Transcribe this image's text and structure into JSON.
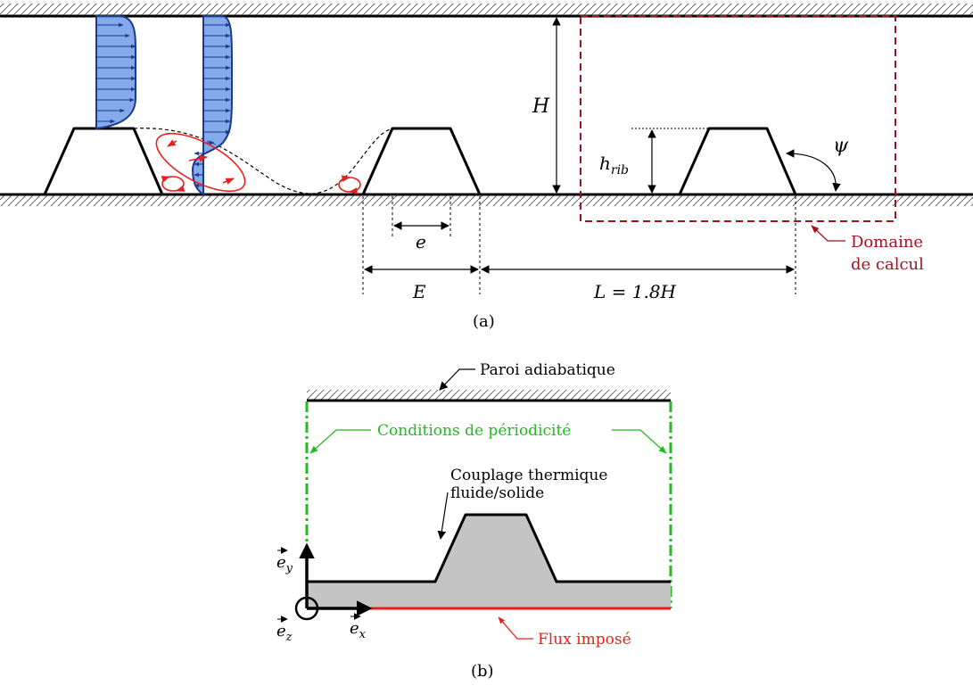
{
  "panel_a": {
    "caption": "(a)",
    "label_H": "H",
    "label_h": "h",
    "label_h_sub": "rib",
    "label_psi": "ψ",
    "label_e": "e",
    "label_E": "E",
    "label_L": "L = 1.8H",
    "domain_label_line1": "Domaine",
    "domain_label_line2": "de calcul"
  },
  "panel_b": {
    "caption": "(b)",
    "wall_label": "Paroi adiabatique",
    "periodic_label": "Conditions de périodicité",
    "coupling_line1": "Couplage thermique",
    "coupling_line2": "fluide/solide",
    "flux_label": "Flux imposé",
    "axis_x": "e",
    "axis_x_sub": "x",
    "axis_y": "e",
    "axis_y_sub": "y",
    "axis_z": "e",
    "axis_z_sub": "z"
  },
  "colors": {
    "profile_fill": "#5b8ee6",
    "profile_edge": "#1a3a8c",
    "vortex": "#e8201c",
    "domain": "#a3121f",
    "periodic": "#22bb22",
    "flux": "#e8201c",
    "solid": "#c4c4c4"
  }
}
